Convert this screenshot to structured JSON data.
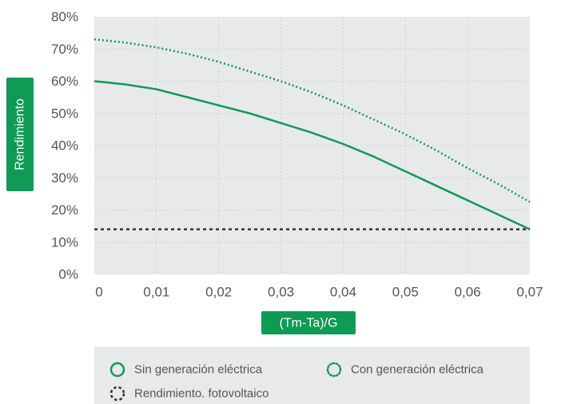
{
  "chart_data": {
    "type": "line",
    "xlabel": "(Tm-Ta)/G",
    "ylabel": "Rendimiento",
    "xlim": [
      0,
      0.07
    ],
    "ylim": [
      0,
      80
    ],
    "x_ticks": [
      "0",
      "0,01",
      "0,02",
      "0,03",
      "0,04",
      "0,05",
      "0,06",
      "0,07"
    ],
    "y_ticks": [
      "0%",
      "10%",
      "20%",
      "30%",
      "40%",
      "50%",
      "60%",
      "70%",
      "80%"
    ],
    "grid": true,
    "legend_position": "bottom",
    "series": [
      {
        "name": "Sin generación eléctrica",
        "style": "solid",
        "color": "#0f9a55",
        "x": [
          0,
          0.005,
          0.01,
          0.015,
          0.02,
          0.025,
          0.03,
          0.035,
          0.04,
          0.045,
          0.05,
          0.055,
          0.06,
          0.065,
          0.07
        ],
        "y": [
          60,
          59,
          57.5,
          55,
          52.5,
          50,
          47,
          44,
          40.5,
          36.5,
          32,
          27.5,
          23,
          18.5,
          14
        ]
      },
      {
        "name": "Con generación eléctrica",
        "style": "dotted",
        "color": "#0f9a55",
        "x": [
          0,
          0.005,
          0.01,
          0.015,
          0.02,
          0.025,
          0.03,
          0.035,
          0.04,
          0.045,
          0.05,
          0.055,
          0.06,
          0.065,
          0.07
        ],
        "y": [
          73,
          72,
          70.5,
          68.5,
          66,
          63,
          60,
          56.5,
          52.5,
          48,
          43.5,
          38.5,
          33,
          28,
          22.5
        ]
      },
      {
        "name": "Rendimiento. fotovoltaico",
        "style": "dashed",
        "color": "#333333",
        "x": [
          0,
          0.07
        ],
        "y": [
          14,
          14
        ]
      }
    ]
  },
  "colors": {
    "plot_bg": "#e8e9ea",
    "accent": "#0f9a55",
    "legend_bg": "#e8e9ea"
  }
}
